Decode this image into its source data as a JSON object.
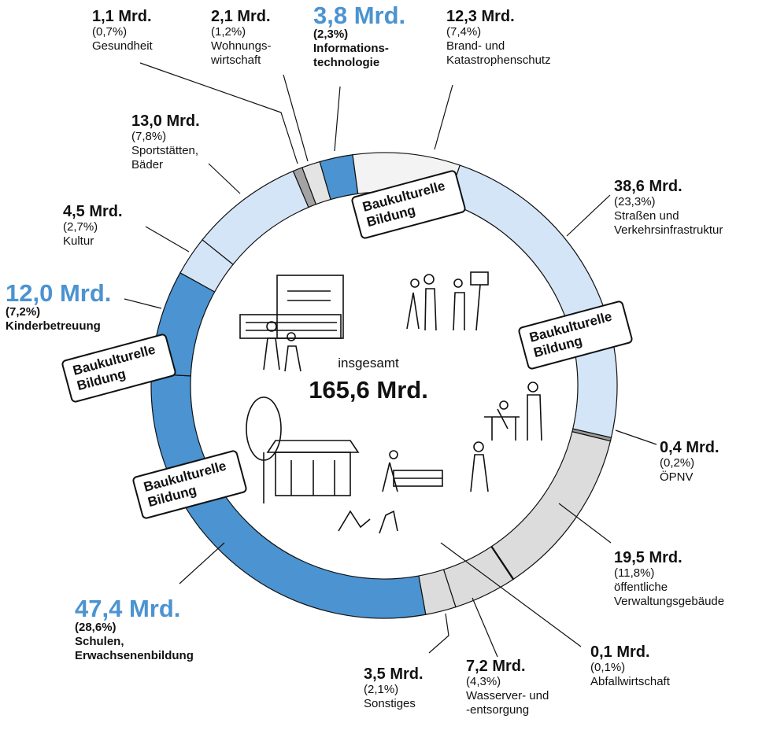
{
  "chart_data": {
    "type": "donut",
    "categories": [
      "Gesundheit",
      "Wohnungs-\nwirtschaft",
      "Informations-\ntechnologie",
      "Brand- und\nKatastrophenschutz",
      "Straßen und\nVerkehrsinfrastruktur",
      "ÖPNV",
      "öffentliche\nVerwaltungsgebäude",
      "Abfallwirtschaft",
      "Wasserver- und\n-entsorgung",
      "Sonstiges",
      "Schulen,\nErwachsenenbildung",
      "Kinderbetreuung",
      "Kultur",
      "Sportstätten,\nBäder"
    ],
    "values": [
      1.1,
      2.1,
      3.8,
      12.3,
      38.6,
      0.4,
      19.5,
      0.1,
      7.2,
      3.5,
      47.4,
      12.0,
      4.5,
      13.0
    ],
    "value_labels": [
      "1,1 Mrd.",
      "2,1 Mrd.",
      "3,8 Mrd.",
      "12,3 Mrd.",
      "38,6 Mrd.",
      "0,4 Mrd.",
      "19,5 Mrd.",
      "0,1 Mrd.",
      "7,2 Mrd.",
      "3,5 Mrd.",
      "47,4 Mrd.",
      "12,0 Mrd.",
      "4,5 Mrd.",
      "13,0 Mrd."
    ],
    "percents": [
      0.7,
      1.2,
      2.3,
      7.4,
      23.3,
      0.2,
      11.8,
      0.1,
      4.3,
      2.1,
      28.6,
      7.2,
      2.7,
      7.8
    ],
    "percent_labels": [
      "(0,7%)",
      "(1,2%)",
      "(2,3%)",
      "(7,4%)",
      "(23,3%)",
      "(0,2%)",
      "(11,8%)",
      "(0,1%)",
      "(4,3%)",
      "(2,1%)",
      "(28,6%)",
      "(7,2%)",
      "(2,7%)",
      "(7,8%)"
    ],
    "colors": [
      "#a3a3a3",
      "#e4e4e4",
      "#4b93d1",
      "#f3f3f3",
      "#d4e5f7",
      "#9a9a9a",
      "#dcdcdc",
      "#9a9a9a",
      "#dcdcdc",
      "#dcdcdc",
      "#4b93d1",
      "#4b93d1",
      "#d4e5f7",
      "#d4e5f7"
    ],
    "highlight": [
      2,
      10,
      11
    ],
    "center_label": "insgesamt",
    "center_value": "165,6 Mrd.",
    "annotations": [
      "Baukulturelle\nBildung",
      "Baukulturelle\nBildung",
      "Baukulturelle\nBildung",
      "Baukulturelle\nBildung"
    ]
  }
}
